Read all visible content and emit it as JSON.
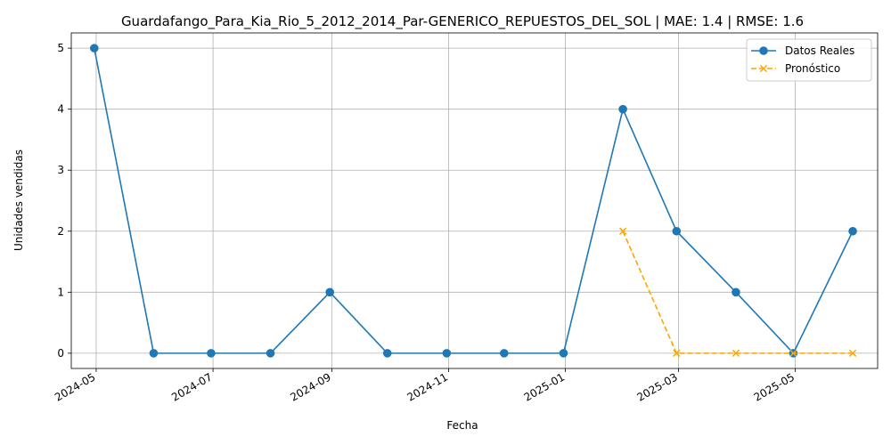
{
  "chart_data": {
    "type": "line",
    "title": "Guardafango_Para_Kia_Rio_5_2012_2014_Par-GENERICO_REPUESTOS_DEL_SOL | MAE: 1.4 | RMSE: 1.6",
    "xlabel": "Fecha",
    "ylabel": "Unidades vendidas",
    "x_ticks": [
      "2024-05",
      "2024-07",
      "2024-09",
      "2024-11",
      "2025-01",
      "2025-03",
      "2025-05"
    ],
    "y_ticks": [
      0,
      1,
      2,
      3,
      4,
      5
    ],
    "xlim": [
      "2024-04-18",
      "2025-06-13"
    ],
    "ylim": [
      -0.25,
      5.25
    ],
    "grid": true,
    "legend_position": "top-right",
    "series": [
      {
        "name": "Datos Reales",
        "color": "#1f77b4",
        "marker": "circle",
        "line_style": "solid",
        "x": [
          "2024-04-30",
          "2024-05-31",
          "2024-06-30",
          "2024-07-31",
          "2024-08-31",
          "2024-09-30",
          "2024-10-31",
          "2024-11-30",
          "2024-12-31",
          "2025-01-31",
          "2025-02-28",
          "2025-03-31",
          "2025-04-30",
          "2025-05-31"
        ],
        "y": [
          5,
          0,
          0,
          0,
          1,
          0,
          0,
          0,
          0,
          4,
          2,
          1,
          0,
          2
        ]
      },
      {
        "name": "Pronóstico",
        "color": "#ffa500",
        "marker": "x",
        "line_style": "dashed",
        "x": [
          "2025-01-31",
          "2025-02-28",
          "2025-03-31",
          "2025-04-30",
          "2025-05-31"
        ],
        "y": [
          2,
          0,
          0,
          0,
          0
        ]
      }
    ]
  }
}
